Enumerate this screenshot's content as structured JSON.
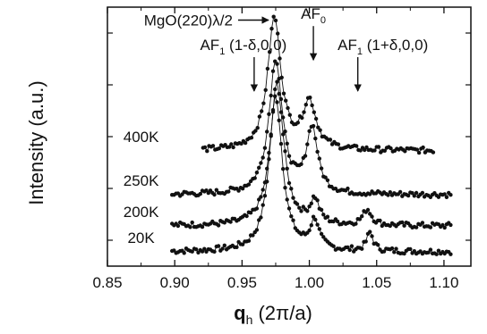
{
  "chart_data": {
    "type": "scatter",
    "title": "",
    "xlabel": "q",
    "xlabel_sub": "h",
    "xlabel_unit": " (2π/a)",
    "ylabel": "Intensity (a.u.)",
    "xlim": [
      0.85,
      1.12
    ],
    "x_ticks": [
      "0.85",
      "0.90",
      "0.95",
      "1.00",
      "1.05",
      "1.10"
    ],
    "x_tick_values": [
      0.85,
      0.9,
      0.95,
      1.0,
      1.05,
      1.1
    ],
    "ylim": [
      0,
      10
    ],
    "grid": false,
    "legend": "none",
    "marker_color": "#111111",
    "series": [
      {
        "name": "20K",
        "baseline": 0.55,
        "x_range": [
          0.898,
          1.106
        ],
        "peaks": [
          {
            "center": 0.975,
            "height": 6.0,
            "width": 0.006
          },
          {
            "center": 1.004,
            "height": 1.1,
            "width": 0.004
          },
          {
            "center": 1.045,
            "height": 0.7,
            "width": 0.003
          }
        ]
      },
      {
        "name": "200K",
        "baseline": 1.55,
        "x_range": [
          0.898,
          1.106
        ],
        "peaks": [
          {
            "center": 0.976,
            "height": 5.5,
            "width": 0.006
          },
          {
            "center": 1.004,
            "height": 0.9,
            "width": 0.004
          },
          {
            "center": 1.043,
            "height": 0.6,
            "width": 0.004
          }
        ]
      },
      {
        "name": "250K",
        "baseline": 2.75,
        "x_range": [
          0.898,
          1.106
        ],
        "peaks": [
          {
            "center": 0.975,
            "height": 5.2,
            "width": 0.006
          },
          {
            "center": 1.002,
            "height": 2.5,
            "width": 0.005
          }
        ]
      },
      {
        "name": "400K",
        "baseline": 4.45,
        "x_range": [
          0.921,
          1.092
        ],
        "peaks": [
          {
            "center": 0.974,
            "height": 5.1,
            "width": 0.006
          },
          {
            "center": 1.0,
            "height": 1.8,
            "width": 0.006
          }
        ]
      }
    ],
    "annotations": [
      {
        "id": "mgo",
        "text": "MgO(220)λ/2",
        "arrow": "right",
        "x": 0.975,
        "y": 9.5
      },
      {
        "id": "af0",
        "label": "AF",
        "sub": "0",
        "rest": "",
        "arrow": "down",
        "x": 1.003,
        "y": 9.2
      },
      {
        "id": "af1_minus",
        "label": "AF",
        "sub": "1",
        "rest": " (1-δ,0,0)",
        "arrow": "down",
        "x": 0.959,
        "y": 8.0
      },
      {
        "id": "af1_plus",
        "label": "AF",
        "sub": "1",
        "rest": " (1+δ,0,0)",
        "arrow": "down",
        "x": 1.036,
        "y": 8.0
      }
    ]
  }
}
